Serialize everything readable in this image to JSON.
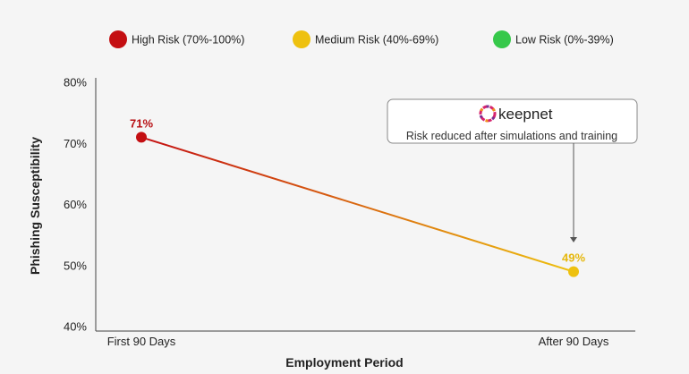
{
  "legend": [
    {
      "label": "High Risk (70%-100%)",
      "color": "#c40f12"
    },
    {
      "label": "Medium Risk (40%-69%)",
      "color": "#eec10f"
    },
    {
      "label": "Low Risk (0%-39%)",
      "color": "#36c84a"
    }
  ],
  "callout": {
    "brand": "keepnet",
    "brand_icon": "keepnet-logo-icon",
    "text": "Risk reduced after simulations and training"
  },
  "chart_data": {
    "type": "line",
    "categories": [
      "First 90 Days",
      "After 90 Days"
    ],
    "series": [
      {
        "values": [
          71,
          49
        ],
        "colors": [
          "#c40f12",
          "#eec10f"
        ]
      }
    ],
    "data_labels": [
      "71%",
      "49%"
    ],
    "xlabel": "Employment Period",
    "ylabel": "Phishing Susceptibility",
    "ylim": [
      40,
      80
    ],
    "yticks": [
      40,
      50,
      60,
      70,
      80
    ],
    "ytick_labels": [
      "40%",
      "50%",
      "60%",
      "70%",
      "80%"
    ],
    "grid": false,
    "legend_position": "top"
  }
}
